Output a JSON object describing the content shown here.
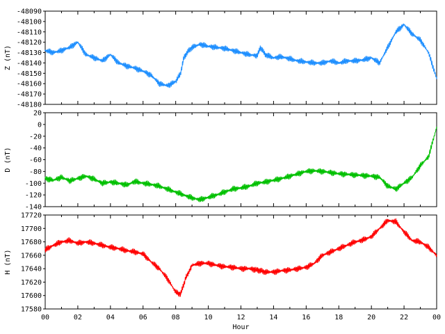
{
  "chart_data": [
    {
      "type": "line",
      "ylabel": "Z (nT)",
      "ylim": [
        -48180,
        -48090
      ],
      "yticks": [
        -48090,
        -48100,
        -48110,
        -48120,
        -48130,
        -48140,
        -48150,
        -48160,
        -48170,
        -48180
      ],
      "xlim": [
        0,
        24
      ],
      "xticks": [
        "00",
        "02",
        "04",
        "06",
        "08",
        "10",
        "12",
        "14",
        "16",
        "18",
        "20",
        "22",
        "00"
      ],
      "color": "#1e8fff",
      "series": [
        {
          "x": [
            0,
            0.5,
            1,
            1.5,
            2,
            2.5,
            3,
            3.5,
            4,
            4.5,
            5,
            5.5,
            6,
            6.5,
            7,
            7.5,
            8,
            8.3,
            8.5,
            8.7,
            9,
            9.5,
            10,
            10.5,
            11,
            11.5,
            12,
            12.5,
            13,
            13.2,
            13.5,
            14,
            14.5,
            15,
            15.5,
            16,
            16.5,
            17,
            17.5,
            18,
            18.5,
            19,
            19.5,
            20,
            20.5,
            21,
            21.5,
            22,
            22.5,
            23,
            23.5,
            24
          ],
          "values": [
            -48128,
            -48130,
            -48128,
            -48125,
            -48120,
            -48132,
            -48135,
            -48138,
            -48132,
            -48140,
            -48143,
            -48145,
            -48148,
            -48152,
            -48160,
            -48162,
            -48158,
            -48150,
            -48135,
            -48130,
            -48125,
            -48122,
            -48124,
            -48125,
            -48126,
            -48128,
            -48130,
            -48132,
            -48133,
            -48125,
            -48132,
            -48135,
            -48134,
            -48136,
            -48138,
            -48139,
            -48140,
            -48140,
            -48138,
            -48140,
            -48138,
            -48138,
            -48137,
            -48135,
            -48140,
            -48125,
            -48110,
            -48103,
            -48112,
            -48118,
            -48130,
            -48155
          ]
        }
      ]
    },
    {
      "type": "line",
      "ylabel": "D (nT)",
      "ylim": [
        -140,
        20
      ],
      "yticks": [
        20,
        0,
        -20,
        -40,
        -60,
        -80,
        -100,
        -120,
        -140
      ],
      "xlim": [
        0,
        24
      ],
      "xticks": [
        "00",
        "02",
        "04",
        "06",
        "08",
        "10",
        "12",
        "14",
        "16",
        "18",
        "20",
        "22",
        "00"
      ],
      "color": "#00c000",
      "series": [
        {
          "x": [
            0,
            0.5,
            1,
            1.5,
            2,
            2.5,
            3,
            3.5,
            4,
            4.5,
            5,
            5.5,
            6,
            6.5,
            7,
            7.5,
            8,
            8.5,
            9,
            9.5,
            10,
            10.5,
            11,
            11.5,
            12,
            12.5,
            13,
            13.5,
            14,
            14.5,
            15,
            15.5,
            16,
            16.5,
            17,
            17.5,
            18,
            18.5,
            19,
            19.5,
            20,
            20.5,
            21,
            21.5,
            22,
            22.5,
            23,
            23.5,
            24
          ],
          "values": [
            -92,
            -95,
            -90,
            -96,
            -92,
            -88,
            -93,
            -100,
            -98,
            -100,
            -103,
            -97,
            -100,
            -102,
            -105,
            -110,
            -115,
            -120,
            -125,
            -128,
            -124,
            -120,
            -115,
            -110,
            -108,
            -105,
            -100,
            -98,
            -95,
            -92,
            -88,
            -84,
            -80,
            -79,
            -80,
            -82,
            -84,
            -85,
            -86,
            -87,
            -88,
            -90,
            -105,
            -110,
            -100,
            -90,
            -70,
            -55,
            -5
          ]
        }
      ]
    },
    {
      "type": "line",
      "ylabel": "H (nT)",
      "ylim": [
        17580,
        17720
      ],
      "yticks": [
        17720,
        17700,
        17680,
        17660,
        17640,
        17620,
        17600,
        17580
      ],
      "xlim": [
        0,
        24
      ],
      "xticks": [
        "00",
        "02",
        "04",
        "06",
        "08",
        "10",
        "12",
        "14",
        "16",
        "18",
        "20",
        "22",
        "00"
      ],
      "xlabel": "Hour",
      "color": "#ff0000",
      "series": [
        {
          "x": [
            0,
            0.5,
            1,
            1.5,
            2,
            2.5,
            3,
            3.5,
            4,
            4.5,
            5,
            5.5,
            6,
            6.5,
            7,
            7.5,
            8,
            8.3,
            8.6,
            9,
            9.5,
            10,
            10.5,
            11,
            11.5,
            12,
            12.5,
            13,
            13.2,
            13.5,
            14,
            14.5,
            15,
            15.5,
            16,
            16.5,
            17,
            17.5,
            18,
            18.5,
            19,
            19.5,
            20,
            20.5,
            21,
            21.5,
            22,
            22.5,
            23,
            23.5,
            24
          ],
          "values": [
            17668,
            17675,
            17680,
            17682,
            17678,
            17680,
            17678,
            17675,
            17672,
            17670,
            17667,
            17665,
            17662,
            17650,
            17640,
            17625,
            17605,
            17602,
            17625,
            17645,
            17648,
            17648,
            17645,
            17643,
            17642,
            17640,
            17640,
            17638,
            17637,
            17635,
            17635,
            17637,
            17638,
            17640,
            17642,
            17648,
            17660,
            17665,
            17670,
            17675,
            17680,
            17683,
            17688,
            17700,
            17712,
            17710,
            17695,
            17682,
            17680,
            17672,
            17660
          ]
        }
      ]
    }
  ]
}
